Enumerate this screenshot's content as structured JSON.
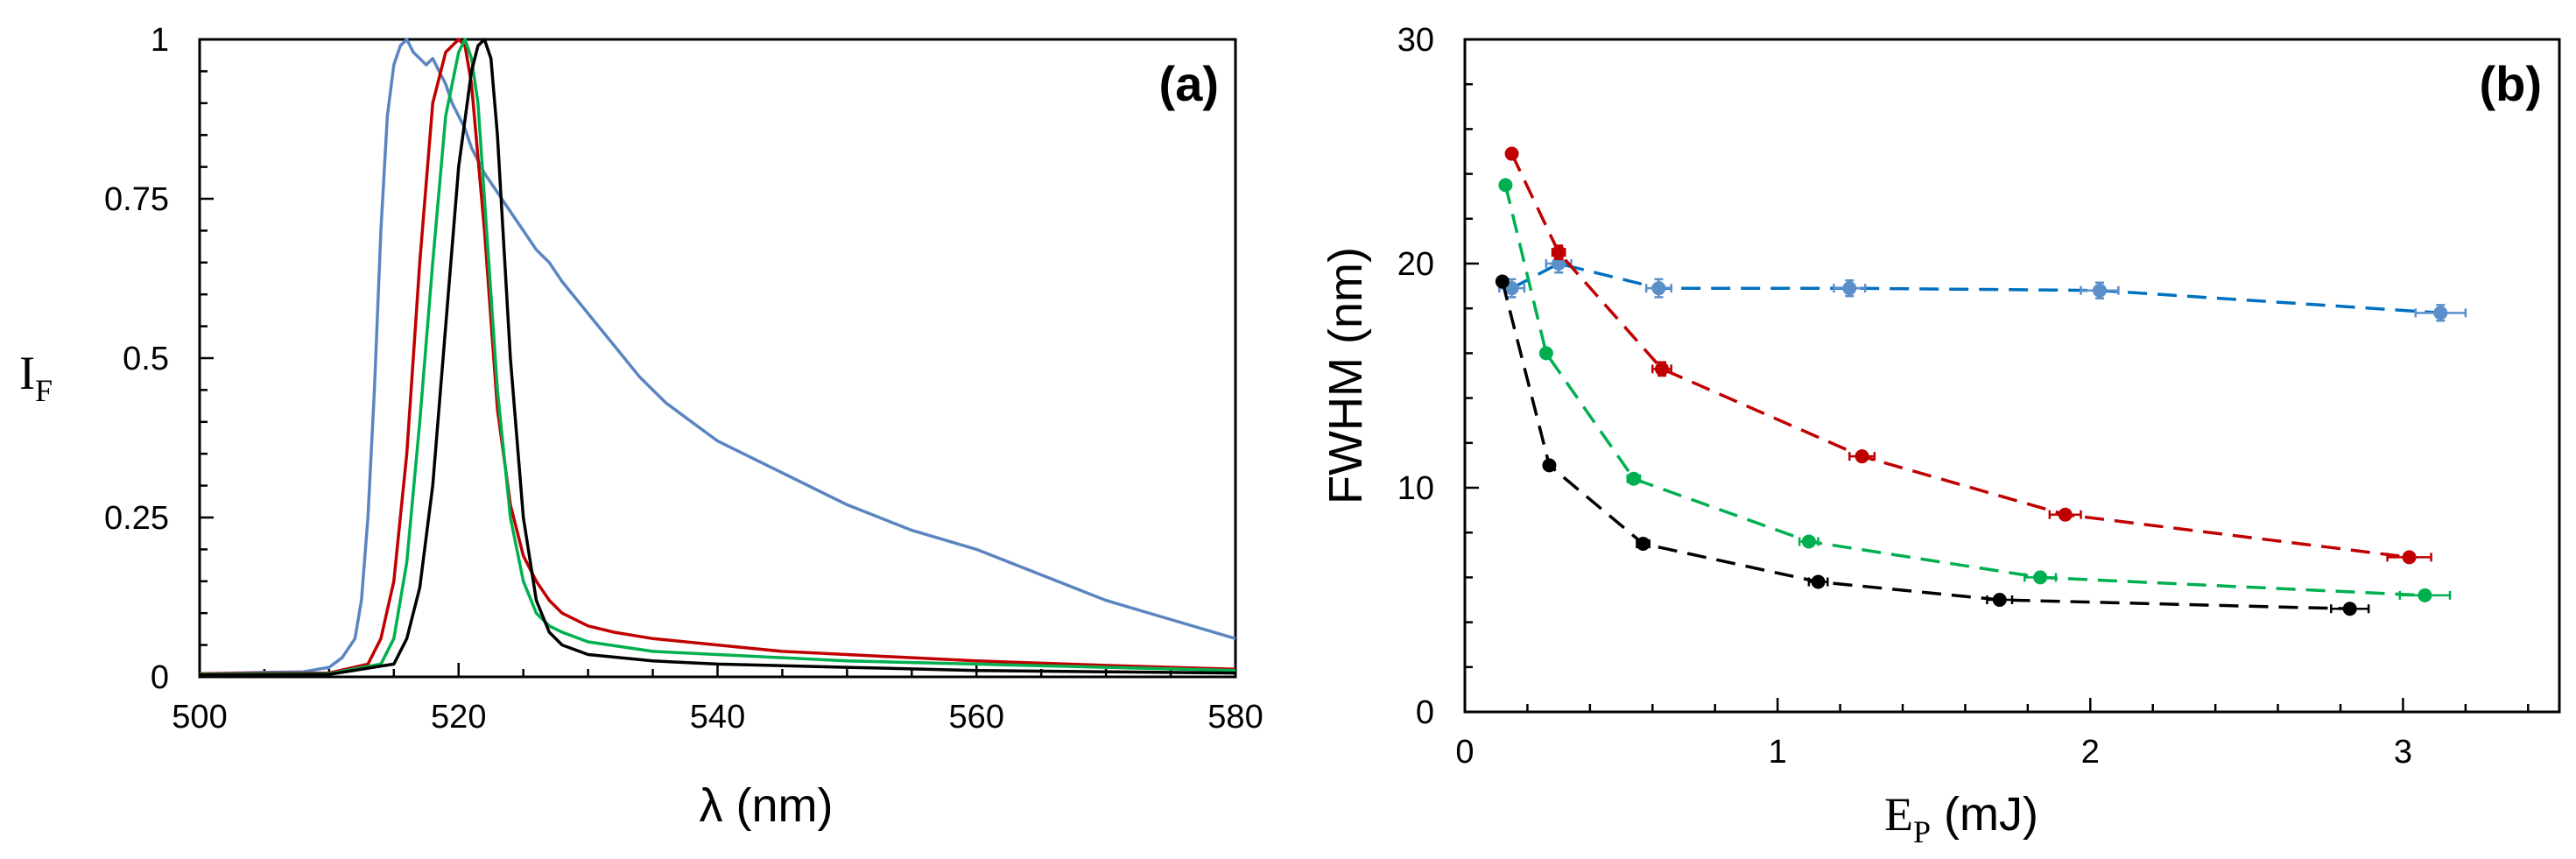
{
  "chart_data": [
    {
      "panel": "a",
      "type": "line",
      "panel_label": "(a)",
      "xlabel": "λ (nm)",
      "ylabel": {
        "main": "I",
        "sub": "F"
      },
      "xlim": [
        500,
        580
      ],
      "ylim": [
        0,
        1
      ],
      "x_major_ticks": [
        500,
        520,
        540,
        560,
        580
      ],
      "x_tick_labels": [
        "500",
        "520",
        "540",
        "560",
        "580"
      ],
      "y_major_ticks": [
        0,
        0.25,
        0.5,
        0.75,
        1
      ],
      "y_tick_labels": [
        "0",
        "0.25",
        "0.5",
        "0.75",
        "1"
      ],
      "grid": false,
      "series": [
        {
          "name": "blue",
          "color": "#5b85c0",
          "x": [
            500,
            505,
            508,
            510,
            511,
            512,
            512.5,
            513,
            513.5,
            514,
            514.5,
            515,
            515.5,
            516,
            516.5,
            517,
            517.5,
            518,
            518.5,
            519,
            519.5,
            520,
            520.5,
            521,
            521.5,
            522,
            523,
            524,
            525,
            526,
            527,
            528,
            530,
            532,
            534,
            536,
            538,
            540,
            545,
            550,
            555,
            560,
            565,
            570,
            575,
            580
          ],
          "y": [
            0.005,
            0.007,
            0.008,
            0.015,
            0.03,
            0.06,
            0.12,
            0.25,
            0.45,
            0.7,
            0.88,
            0.96,
            0.99,
            1.0,
            0.98,
            0.97,
            0.96,
            0.97,
            0.95,
            0.93,
            0.9,
            0.88,
            0.86,
            0.83,
            0.81,
            0.79,
            0.76,
            0.73,
            0.7,
            0.67,
            0.65,
            0.62,
            0.57,
            0.52,
            0.47,
            0.43,
            0.4,
            0.37,
            0.32,
            0.27,
            0.23,
            0.2,
            0.16,
            0.12,
            0.09,
            0.06
          ]
        },
        {
          "name": "red",
          "color": "#c00000",
          "x": [
            500,
            510,
            513,
            514,
            515,
            516,
            517,
            518,
            519,
            520,
            520.5,
            521,
            522,
            523,
            524,
            525,
            526,
            527,
            528,
            530,
            532,
            535,
            540,
            545,
            550,
            560,
            570,
            580
          ],
          "y": [
            0.005,
            0.006,
            0.02,
            0.06,
            0.15,
            0.35,
            0.65,
            0.9,
            0.98,
            1.0,
            0.99,
            0.93,
            0.7,
            0.42,
            0.27,
            0.19,
            0.15,
            0.12,
            0.1,
            0.08,
            0.07,
            0.06,
            0.05,
            0.04,
            0.035,
            0.025,
            0.018,
            0.012
          ]
        },
        {
          "name": "green",
          "color": "#00b050",
          "x": [
            500,
            510,
            514,
            515,
            516,
            517,
            518,
            519,
            520,
            520.5,
            521,
            521.5,
            522,
            523,
            524,
            525,
            526,
            527,
            528,
            530,
            535,
            540,
            550,
            560,
            570,
            580
          ],
          "y": [
            0.004,
            0.005,
            0.02,
            0.06,
            0.18,
            0.4,
            0.65,
            0.88,
            0.98,
            1.0,
            0.97,
            0.9,
            0.75,
            0.45,
            0.25,
            0.15,
            0.1,
            0.08,
            0.07,
            0.055,
            0.04,
            0.035,
            0.025,
            0.02,
            0.015,
            0.01
          ]
        },
        {
          "name": "black",
          "color": "#000000",
          "x": [
            500,
            510,
            515,
            516,
            517,
            518,
            519,
            520,
            521,
            521.5,
            522,
            522.5,
            523,
            524,
            525,
            526,
            527,
            528,
            530,
            535,
            540,
            550,
            560,
            570,
            580
          ],
          "y": [
            0.003,
            0.004,
            0.02,
            0.06,
            0.14,
            0.3,
            0.55,
            0.8,
            0.95,
            0.99,
            1.0,
            0.97,
            0.85,
            0.5,
            0.25,
            0.12,
            0.07,
            0.05,
            0.035,
            0.025,
            0.02,
            0.015,
            0.01,
            0.008,
            0.006
          ]
        }
      ]
    },
    {
      "panel": "b",
      "type": "scatter",
      "panel_label": "(b)",
      "xlabel": {
        "main": "E",
        "sub": "P",
        "rest": " (mJ)"
      },
      "ylabel": "FWHM (nm)",
      "xlim": [
        0,
        3.5
      ],
      "ylim": [
        0,
        30
      ],
      "x_major_ticks": [
        0,
        1,
        2,
        3
      ],
      "x_tick_labels": [
        "0",
        "1",
        "2",
        "3"
      ],
      "y_major_ticks": [
        0,
        10,
        20,
        30
      ],
      "y_tick_labels": [
        "0",
        "10",
        "20",
        "30"
      ],
      "grid": false,
      "series": [
        {
          "name": "blue",
          "color": "#5b8fc9",
          "line_color": "#0070c0",
          "x": [
            0.15,
            0.3,
            0.62,
            1.23,
            2.03,
            3.12
          ],
          "y": [
            18.9,
            20.0,
            18.9,
            18.9,
            18.8,
            17.8
          ],
          "xerr": [
            0.04,
            0.04,
            0.04,
            0.05,
            0.06,
            0.08
          ],
          "yerr": [
            0.4,
            0.4,
            0.4,
            0.35,
            0.35,
            0.35
          ]
        },
        {
          "name": "red",
          "color": "#c00000",
          "x": [
            0.15,
            0.3,
            0.63,
            1.27,
            1.92,
            3.02
          ],
          "y": [
            24.9,
            20.5,
            15.3,
            11.4,
            8.8,
            6.9
          ],
          "xerr": [
            0.01,
            0.02,
            0.03,
            0.04,
            0.05,
            0.07
          ],
          "yerr": [
            0.2,
            0.3,
            0.3,
            0.2,
            0.2,
            0.2
          ]
        },
        {
          "name": "green",
          "color": "#00b050",
          "x": [
            0.13,
            0.26,
            0.54,
            1.1,
            1.84,
            3.07
          ],
          "y": [
            23.5,
            16.0,
            10.4,
            7.6,
            6.0,
            5.2
          ],
          "xerr": [
            0.01,
            0.01,
            0.02,
            0.03,
            0.05,
            0.08
          ],
          "yerr": [
            0.2,
            0.2,
            0.2,
            0.15,
            0.15,
            0.15
          ]
        },
        {
          "name": "black",
          "color": "#000000",
          "x": [
            0.12,
            0.27,
            0.57,
            1.13,
            1.71,
            2.83
          ],
          "y": [
            19.2,
            11.0,
            7.5,
            5.8,
            5.0,
            4.6
          ],
          "xerr": [
            0.01,
            0.01,
            0.02,
            0.03,
            0.04,
            0.06
          ],
          "yerr": [
            0.2,
            0.15,
            0.15,
            0.1,
            0.1,
            0.1
          ]
        }
      ]
    }
  ]
}
